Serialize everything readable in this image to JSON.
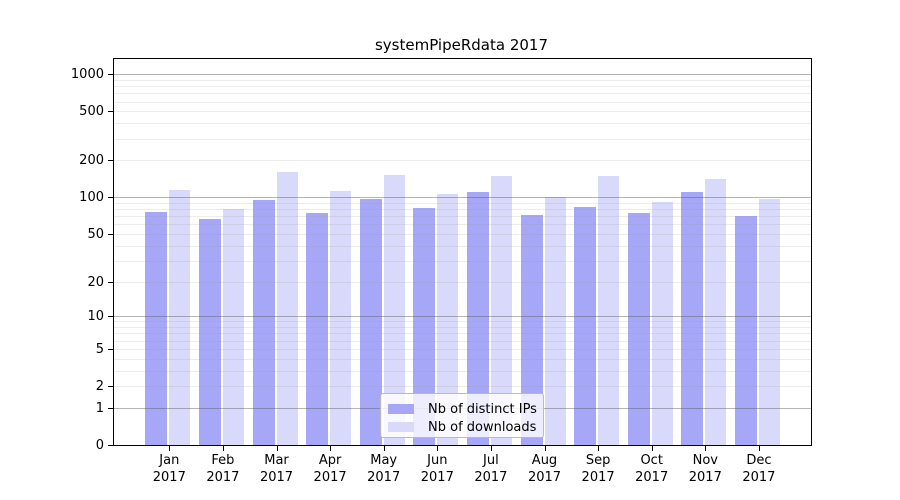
{
  "figure": {
    "background": "#ffffff"
  },
  "chart_data": {
    "type": "bar",
    "title": "systemPipeRdata 2017",
    "categories": [
      "Jan 2017",
      "Feb 2017",
      "Mar 2017",
      "Apr 2017",
      "May 2017",
      "Jun 2017",
      "Jul 2017",
      "Aug 2017",
      "Sep 2017",
      "Oct 2017",
      "Nov 2017",
      "Dec 2017"
    ],
    "series": [
      {
        "name": "Nb of distinct IPs",
        "color": "#a7a7f7",
        "values": [
          76,
          66,
          95,
          75,
          96,
          81,
          110,
          72,
          83,
          75,
          111,
          70
        ]
      },
      {
        "name": "Nb of downloads",
        "color": "#d9d9fb",
        "values": [
          114,
          80,
          162,
          113,
          152,
          107,
          148,
          100,
          150,
          92,
          141,
          96
        ]
      }
    ],
    "yscale": "log10(value+1)",
    "y_ticks": [
      0,
      1,
      2,
      5,
      10,
      20,
      50,
      100,
      200,
      500,
      1000
    ],
    "ylim": [
      0,
      1327
    ],
    "grid": true,
    "legend_position": "bottom-center",
    "colors": {
      "major_grid": "#b0b0b0",
      "minor_grid": "#ececec",
      "axis": "#000000",
      "text": "#000000"
    }
  }
}
